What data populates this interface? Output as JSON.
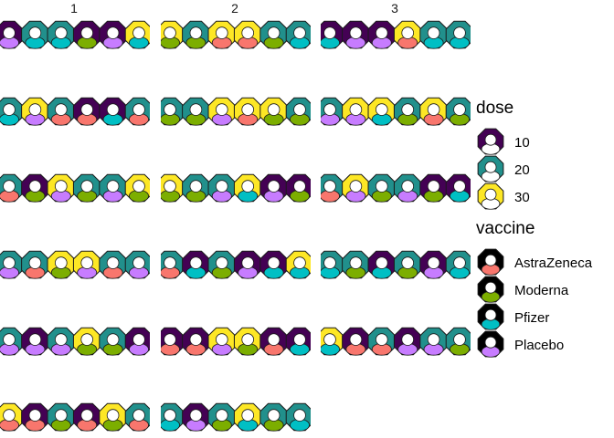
{
  "chart_data": {
    "type": "scatter",
    "facets": [
      "1",
      "2",
      "3"
    ],
    "palette": {
      "dose": {
        "10": "#440154",
        "20": "#21908c",
        "30": "#fde725"
      },
      "vaccine": {
        "AstraZeneca": "#f8766d",
        "Moderna": "#7cae00",
        "Pfizer": "#00bfc4",
        "Placebo": "#c77cff"
      }
    },
    "legends": [
      {
        "title": "dose",
        "entries": [
          {
            "label": "10",
            "key": "10"
          },
          {
            "label": "20",
            "key": "20"
          },
          {
            "label": "30",
            "key": "30"
          }
        ]
      },
      {
        "title": "vaccine",
        "entries": [
          {
            "label": "AstraZeneca",
            "key": "AstraZeneca"
          },
          {
            "label": "Moderna",
            "key": "Moderna"
          },
          {
            "label": "Pfizer",
            "key": "Pfizer"
          },
          {
            "label": "Placebo",
            "key": "Placebo"
          }
        ]
      }
    ],
    "panels": [
      {
        "facet": "1",
        "rows": [
          [
            [
              "10",
              "Placebo"
            ],
            [
              "20",
              "Pfizer"
            ],
            [
              "20",
              "Pfizer"
            ],
            [
              "10",
              "Moderna"
            ],
            [
              "10",
              "Placebo"
            ],
            [
              "30",
              "Pfizer"
            ]
          ],
          [
            [
              "20",
              "Pfizer"
            ],
            [
              "30",
              "Placebo"
            ],
            [
              "20",
              "AstraZeneca"
            ],
            [
              "10",
              "AstraZeneca"
            ],
            [
              "10",
              "Pfizer"
            ],
            [
              "20",
              "AstraZeneca"
            ]
          ],
          [
            [
              "20",
              "AstraZeneca"
            ],
            [
              "10",
              "Moderna"
            ],
            [
              "30",
              "Placebo"
            ],
            [
              "20",
              "Moderna"
            ],
            [
              "20",
              "Placebo"
            ],
            [
              "30",
              "Moderna"
            ]
          ],
          [
            [
              "20",
              "Placebo"
            ],
            [
              "20",
              "AstraZeneca"
            ],
            [
              "30",
              "Moderna"
            ],
            [
              "30",
              "Placebo"
            ],
            [
              "20",
              "AstraZeneca"
            ],
            [
              "20",
              "Placebo"
            ]
          ],
          [
            [
              "20",
              "Placebo"
            ],
            [
              "10",
              "Placebo"
            ],
            [
              "20",
              "Placebo"
            ],
            [
              "30",
              "Moderna"
            ],
            [
              "20",
              "Moderna"
            ],
            [
              "10",
              "Placebo"
            ]
          ],
          [
            [
              "30",
              "AstraZeneca"
            ],
            [
              "10",
              "AstraZeneca"
            ],
            [
              "20",
              "Moderna"
            ],
            [
              "10",
              "AstraZeneca"
            ],
            [
              "30",
              "Moderna"
            ],
            [
              "20",
              "AstraZeneca"
            ]
          ]
        ]
      },
      {
        "facet": "2",
        "rows": [
          [
            [
              "30",
              "Moderna"
            ],
            [
              "20",
              "Moderna"
            ],
            [
              "30",
              "AstraZeneca"
            ],
            [
              "30",
              "AstraZeneca"
            ],
            [
              "20",
              "Moderna"
            ],
            [
              "20",
              "Pfizer"
            ]
          ],
          [
            [
              "20",
              "Moderna"
            ],
            [
              "20",
              "Moderna"
            ],
            [
              "30",
              "Placebo"
            ],
            [
              "30",
              "AstraZeneca"
            ],
            [
              "30",
              "Moderna"
            ],
            [
              "20",
              "Moderna"
            ]
          ],
          [
            [
              "30",
              "Moderna"
            ],
            [
              "20",
              "Moderna"
            ],
            [
              "20",
              "Placebo"
            ],
            [
              "30",
              "Pfizer"
            ],
            [
              "10",
              "Placebo"
            ],
            [
              "10",
              "Moderna"
            ]
          ],
          [
            [
              "20",
              "AstraZeneca"
            ],
            [
              "10",
              "Pfizer"
            ],
            [
              "20",
              "Moderna"
            ],
            [
              "10",
              "Placebo"
            ],
            [
              "10",
              "Pfizer"
            ],
            [
              "30",
              "Pfizer"
            ]
          ],
          [
            [
              "10",
              "AstraZeneca"
            ],
            [
              "10",
              "AstraZeneca"
            ],
            [
              "30",
              "Placebo"
            ],
            [
              "30",
              "Moderna"
            ],
            [
              "10",
              "AstraZeneca"
            ],
            [
              "10",
              "Pfizer"
            ]
          ],
          [
            [
              "20",
              "Pfizer"
            ],
            [
              "10",
              "Placebo"
            ],
            [
              "20",
              "Moderna"
            ],
            [
              "30",
              "Pfizer"
            ],
            [
              "20",
              "Moderna"
            ],
            [
              "20",
              "Pfizer"
            ]
          ]
        ]
      },
      {
        "facet": "3",
        "rows": [
          [
            [
              "10",
              "Pfizer"
            ],
            [
              "10",
              "Placebo"
            ],
            [
              "10",
              "Placebo"
            ],
            [
              "30",
              "AstraZeneca"
            ],
            [
              "20",
              "Pfizer"
            ],
            [
              "20",
              "Pfizer"
            ]
          ],
          [
            [
              "20",
              "Placebo"
            ],
            [
              "30",
              "Placebo"
            ],
            [
              "30",
              "Pfizer"
            ],
            [
              "20",
              "Moderna"
            ],
            [
              "30",
              "AstraZeneca"
            ],
            [
              "20",
              "Moderna"
            ]
          ],
          [
            [
              "20",
              "AstraZeneca"
            ],
            [
              "30",
              "Placebo"
            ],
            [
              "20",
              "Moderna"
            ],
            [
              "20",
              "Placebo"
            ],
            [
              "10",
              "Moderna"
            ],
            [
              "10",
              "Pfizer"
            ]
          ],
          [
            [
              "20",
              "Pfizer"
            ],
            [
              "20",
              "Moderna"
            ],
            [
              "10",
              "Pfizer"
            ],
            [
              "20",
              "Moderna"
            ],
            [
              "10",
              "Placebo"
            ],
            [
              "20",
              "Pfizer"
            ]
          ],
          [
            [
              "30",
              "Pfizer"
            ],
            [
              "10",
              "AstraZeneca"
            ],
            [
              "20",
              "AstraZeneca"
            ],
            [
              "10",
              "Placebo"
            ],
            [
              "20",
              "Placebo"
            ],
            [
              "20",
              "Moderna"
            ]
          ],
          []
        ]
      }
    ]
  }
}
